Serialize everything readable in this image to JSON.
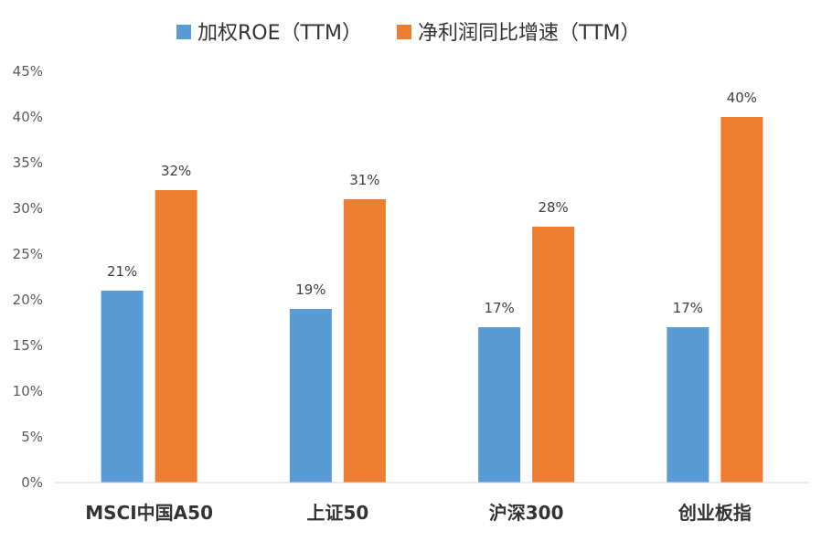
{
  "chart_data": {
    "type": "bar",
    "categories": [
      "MSCI中国A50",
      "上证50",
      "沪深300",
      "创业板指"
    ],
    "series": [
      {
        "name": "加权ROE（TTM）",
        "color": "#5B9BD5",
        "values": [
          21,
          19,
          17,
          17
        ],
        "labels": [
          "21%",
          "19%",
          "17%",
          "17%"
        ]
      },
      {
        "name": "净利润同比增速（TTM）",
        "color": "#ED7D31",
        "values": [
          32,
          31,
          28,
          40
        ],
        "labels": [
          "32%",
          "31%",
          "28%",
          "40%"
        ]
      }
    ],
    "y_ticks": [
      "0%",
      "5%",
      "10%",
      "15%",
      "20%",
      "25%",
      "30%",
      "35%",
      "40%",
      "45%"
    ],
    "ylim": [
      0,
      45
    ],
    "legend_position": "top-center",
    "grid": false
  }
}
